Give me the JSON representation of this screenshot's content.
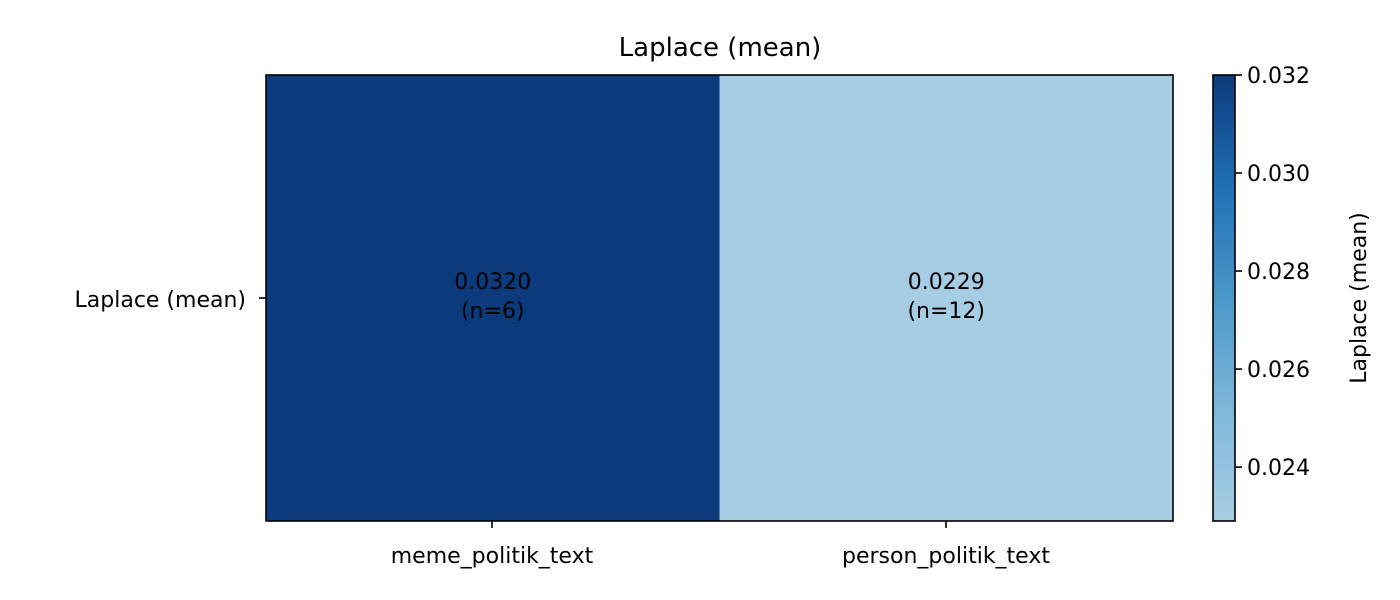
{
  "chart_data": {
    "type": "heatmap",
    "title": "Laplace (mean)",
    "y_categories": [
      "Laplace (mean)"
    ],
    "x_categories": [
      "meme_politik_text",
      "person_politik_text"
    ],
    "cells": [
      {
        "row": 0,
        "col": 0,
        "value": 0.032,
        "value_label": "0.0320",
        "n_label": "(n=6)"
      },
      {
        "row": 0,
        "col": 1,
        "value": 0.0229,
        "value_label": "0.0229",
        "n_label": "(n=12)"
      }
    ],
    "colorbar": {
      "label": "Laplace (mean)",
      "range": [
        0.0229,
        0.032
      ],
      "ticks": [
        0.024,
        0.026,
        0.028,
        0.03,
        0.032
      ],
      "tick_labels": [
        "0.024",
        "0.026",
        "0.028",
        "0.030",
        "0.032"
      ],
      "colormap": "Blues",
      "color_low": "#a6cde3",
      "color_high": "#0b3b7c"
    }
  }
}
